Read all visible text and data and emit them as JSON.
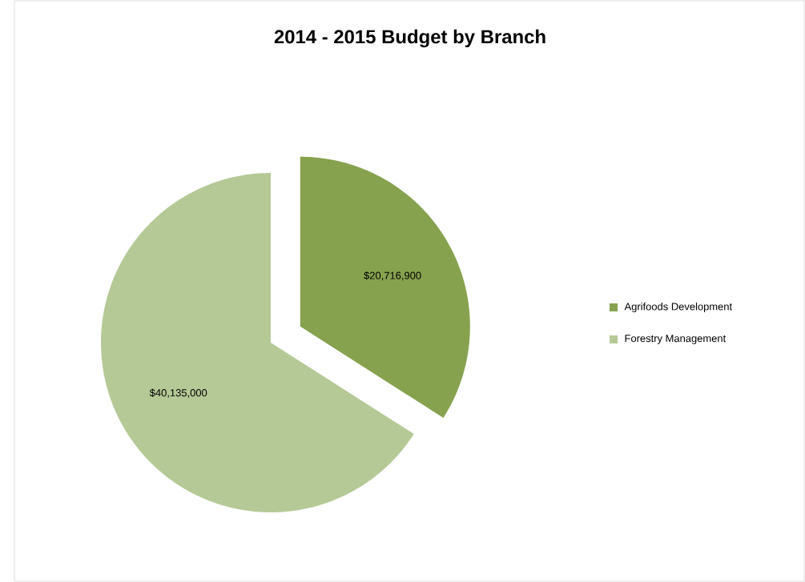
{
  "chart_data": {
    "type": "pie",
    "title": "2014 - 2015 Budget by Branch",
    "categories": [
      "Agrifoods Development",
      "Forestry Management"
    ],
    "values": [
      20716900,
      40135000
    ],
    "value_labels": [
      "$20,716,900",
      "$40,135,000"
    ],
    "colors": [
      "#86a24e",
      "#b5c996"
    ],
    "legend": "right"
  }
}
